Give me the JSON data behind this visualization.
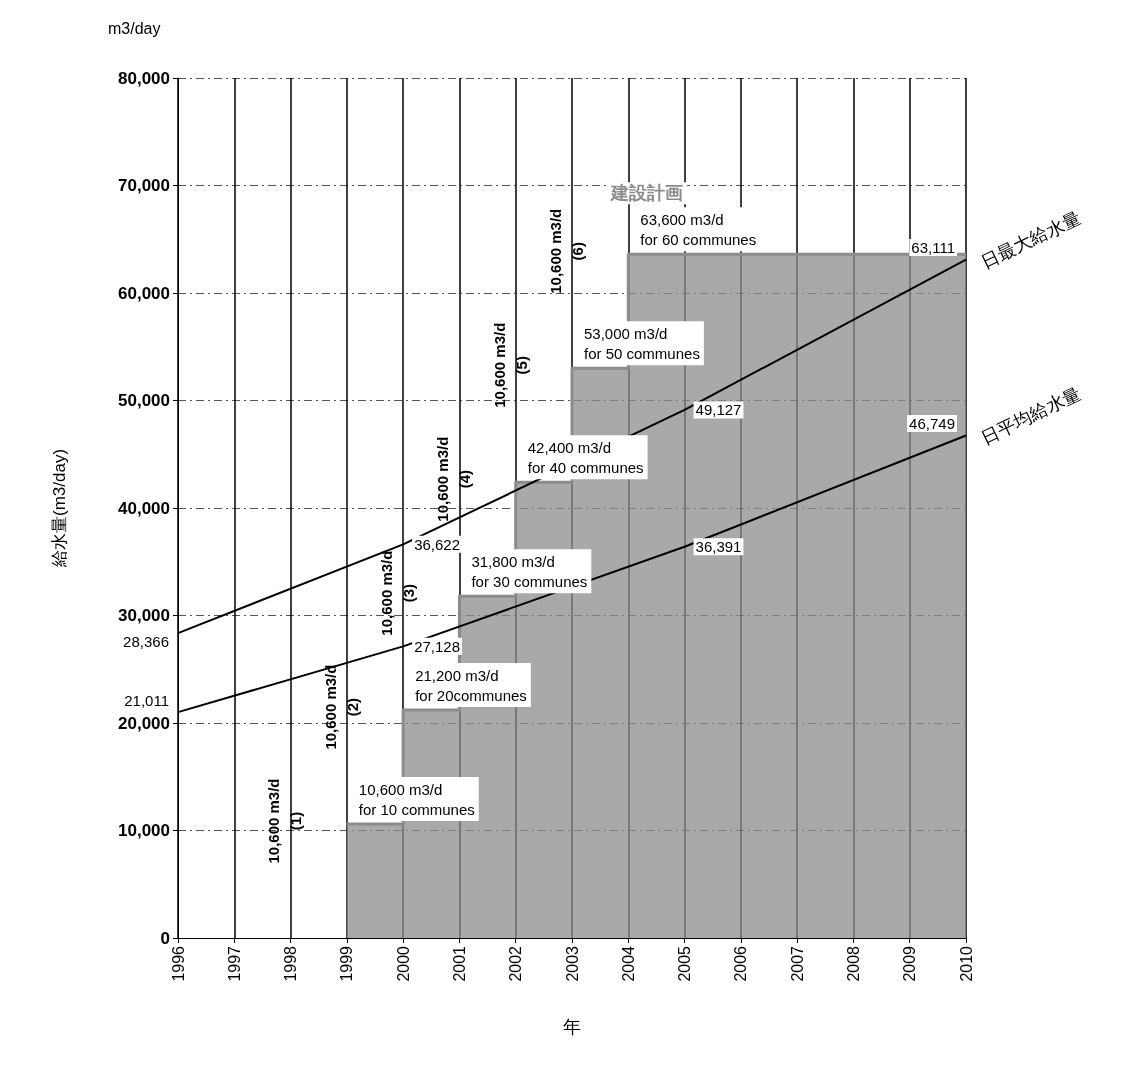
{
  "chart_data": {
    "type": "line",
    "xlabel": "年",
    "ylabel": "給水量(m3/day)",
    "xlim": [
      1996,
      2010
    ],
    "xticks": [
      1996,
      1997,
      1998,
      1999,
      2000,
      2001,
      2002,
      2003,
      2004,
      2005,
      2006,
      2007,
      2008,
      2009,
      2010
    ],
    "ylim": [
      0,
      80000
    ],
    "yticks": [
      {
        "value": 0,
        "label": "0"
      },
      {
        "value": 10000,
        "label": "10,000"
      },
      {
        "value": 20000,
        "label": "20,000"
      },
      {
        "value": 30000,
        "label": "30,000"
      },
      {
        "value": 40000,
        "label": "40,000"
      },
      {
        "value": 50000,
        "label": "50,000"
      },
      {
        "value": 60000,
        "label": "60,000"
      },
      {
        "value": 70000,
        "label": "70,000"
      },
      {
        "value": 80000,
        "label": "80,000"
      }
    ],
    "grid": true,
    "legend": false,
    "marker": "none",
    "series": [
      {
        "name": "建設計画",
        "type": "area",
        "color": "#8c8c8c",
        "x": [
          1999,
          2000,
          2000,
          2001,
          2001,
          2002,
          2002,
          2003,
          2003,
          2004,
          2004,
          2010
        ],
        "values": [
          10600,
          10600,
          21200,
          21200,
          31800,
          31800,
          42400,
          42400,
          53000,
          53000,
          63600,
          63600
        ],
        "value_labels": [
          "10,600 m3/d\nfor 10 communes",
          null,
          "21,200 m3/d\nfor 20communes",
          null,
          "31,800 m3/d\nfor 30 communes",
          null,
          "42,400 m3/d\nfor 40 communes",
          null,
          "53,000 m3/d\nfor 50 communes",
          null,
          "63,600 m3/d\nfor 60 communes",
          null
        ]
      },
      {
        "name": "日最大給水量",
        "color": "#000000",
        "x": [
          1996,
          2000,
          2005,
          2010
        ],
        "values": [
          28366,
          36622,
          49127,
          63111
        ],
        "value_labels": [
          "28,366",
          "36,622",
          "49,127",
          "63,111"
        ]
      },
      {
        "name": "日平均給水量",
        "color": "#000000",
        "x": [
          1996,
          2000,
          2005,
          2010
        ],
        "values": [
          21011,
          27128,
          36391,
          46749
        ],
        "value_labels": [
          "21,011",
          "27,128",
          "36,391",
          "46,749"
        ]
      }
    ],
    "annotations": [
      "m3/day",
      "10,600 m3/d\n(1)",
      "10,600 m3/d\n(2)",
      "10,600 m3/d\n(3)",
      "10,600 m3/d\n(4)",
      "10,600 m3/d\n(5)",
      "10,600 m3/d\n(6)"
    ]
  }
}
